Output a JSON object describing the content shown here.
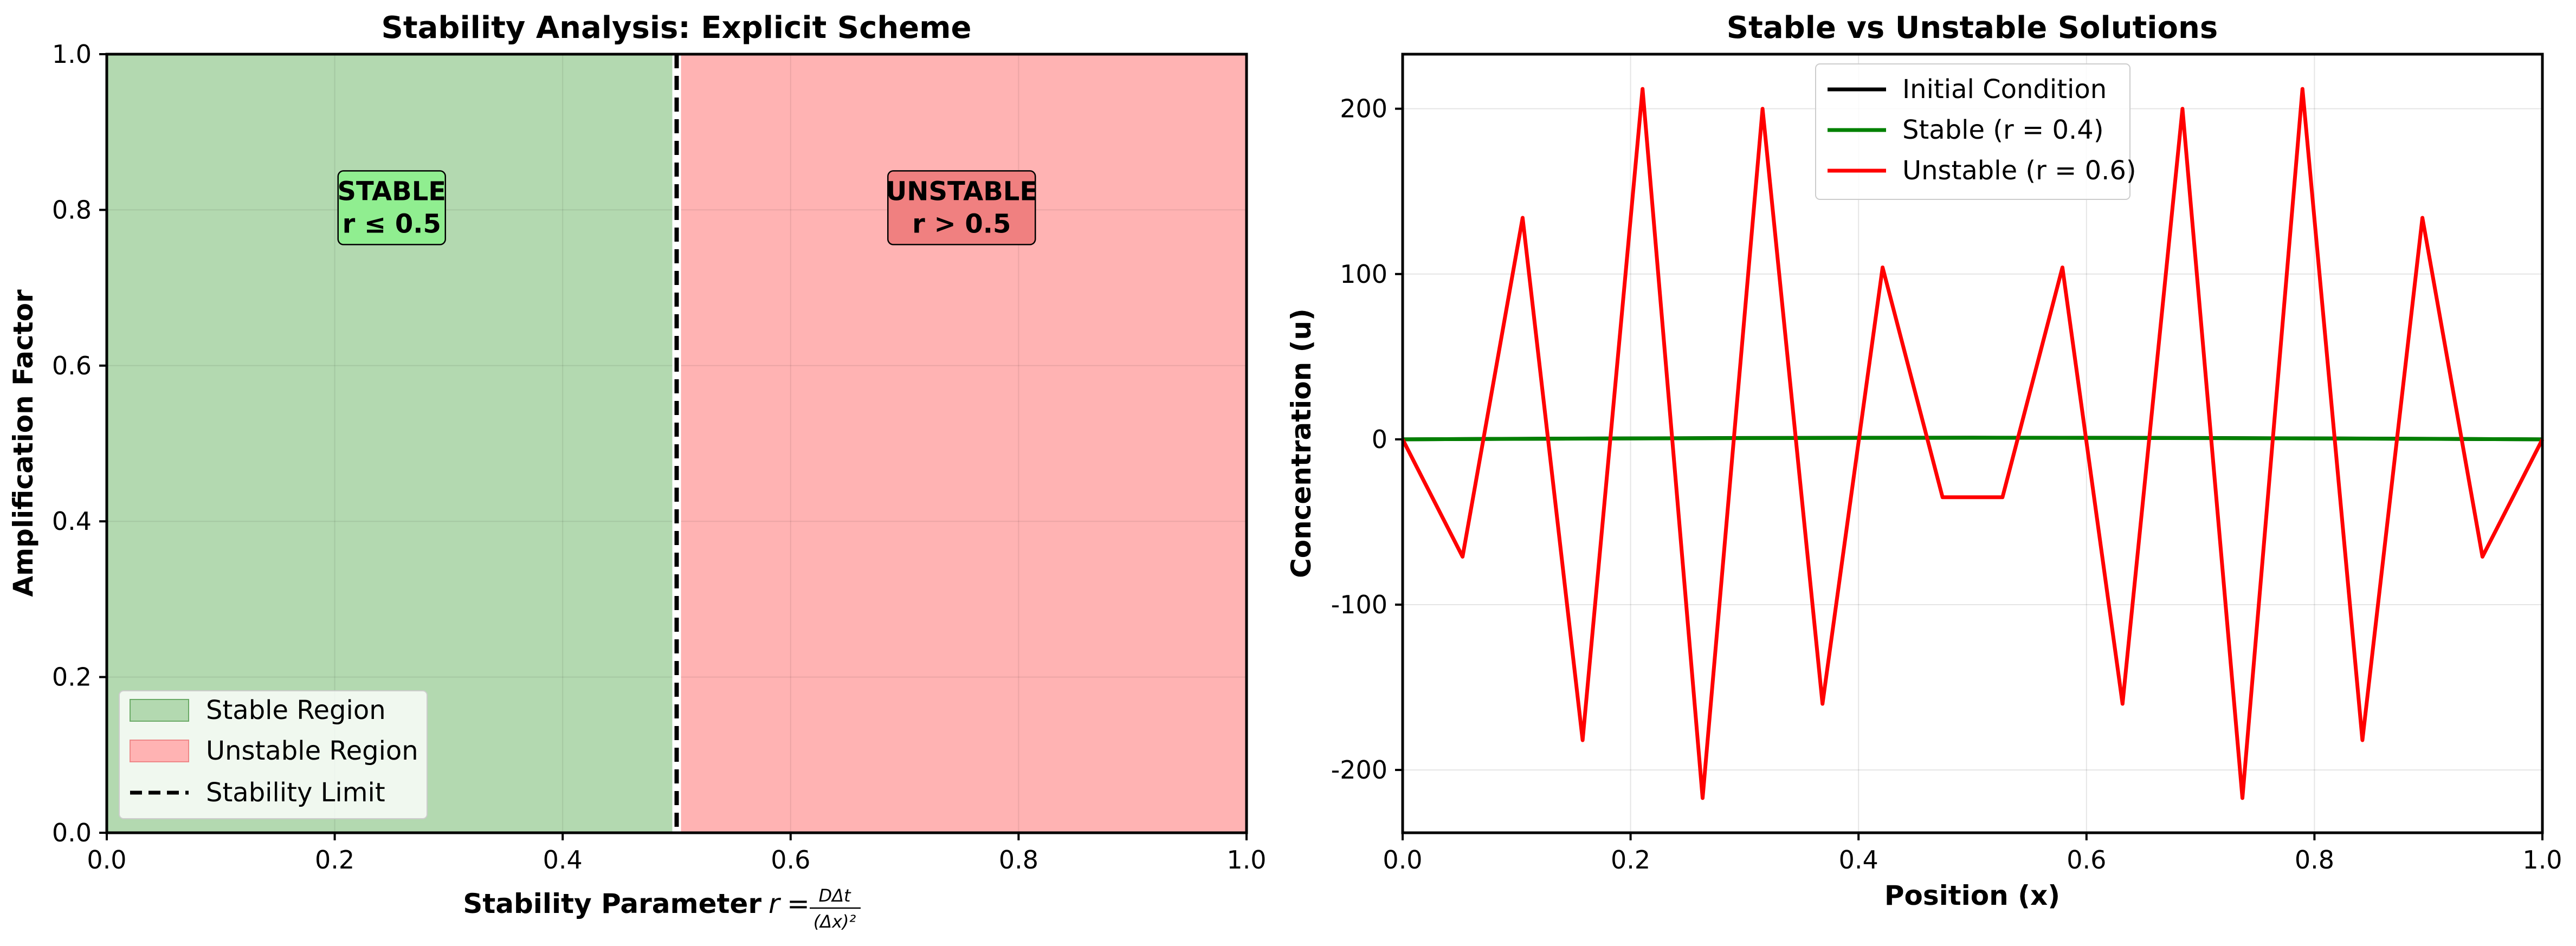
{
  "chart_data": [
    {
      "type": "area",
      "title": "Stability Analysis: Explicit Scheme",
      "xlabel": "Stability Parameter",
      "xlabel_math": "r = DΔt / (Δx)²",
      "ylabel": "Amplification Factor",
      "xlim": [
        0,
        1
      ],
      "ylim": [
        0,
        1
      ],
      "xticks": [
        0.0,
        0.2,
        0.4,
        0.6,
        0.8,
        1.0
      ],
      "yticks": [
        0.0,
        0.2,
        0.4,
        0.6,
        0.8,
        1.0
      ],
      "xtick_labels": [
        "0.0",
        "0.2",
        "0.4",
        "0.6",
        "0.8",
        "1.0"
      ],
      "ytick_labels": [
        "0.0",
        "0.2",
        "0.4",
        "0.6",
        "0.8",
        "1.0"
      ],
      "grid": true,
      "regions": [
        {
          "name": "Stable Region",
          "x": [
            0.0,
            0.5
          ],
          "color": "#b3d9b0"
        },
        {
          "name": "Unstable Region",
          "x": [
            0.5,
            1.0
          ],
          "color": "#ffb3b3"
        }
      ],
      "vline": {
        "name": "Stability Limit",
        "x": 0.5
      },
      "annotations": [
        {
          "line1": "STABLE",
          "line2": "r ≤ 0.5",
          "x": 0.25,
          "y": 0.8,
          "color": "#90ee90"
        },
        {
          "line1": "UNSTABLE",
          "line2": "r > 0.5",
          "x": 0.75,
          "y": 0.8,
          "color": "#f08080"
        }
      ],
      "legend": {
        "position": "lower-left",
        "entries": [
          "Stable Region",
          "Unstable Region",
          "Stability Limit"
        ]
      }
    },
    {
      "type": "line",
      "title": "Stable vs Unstable Solutions",
      "xlabel": "Position (x)",
      "ylabel": "Concentration (u)",
      "xlim": [
        0,
        1
      ],
      "ylim": [
        -238,
        233
      ],
      "xticks": [
        0.0,
        0.2,
        0.4,
        0.6,
        0.8,
        1.0
      ],
      "yticks": [
        -200,
        -100,
        0,
        100,
        200
      ],
      "xtick_labels": [
        "0.0",
        "0.2",
        "0.4",
        "0.6",
        "0.8",
        "1.0"
      ],
      "ytick_labels": [
        "-200",
        "-100",
        "0",
        "100",
        "200"
      ],
      "grid": true,
      "legend": {
        "position": "upper-center"
      },
      "series": [
        {
          "name": "Initial Condition",
          "color": "#000000",
          "x": [
            0.0,
            0.1,
            0.2,
            0.3,
            0.4,
            0.5,
            0.6,
            0.7,
            0.8,
            0.9,
            1.0
          ],
          "values": [
            0.0,
            0.31,
            0.59,
            0.81,
            0.95,
            1.0,
            0.95,
            0.81,
            0.59,
            0.31,
            0.0
          ]
        },
        {
          "name": "Stable (r = 0.4)",
          "color": "#008000",
          "x": [
            0.0,
            0.1,
            0.2,
            0.3,
            0.4,
            0.5,
            0.6,
            0.7,
            0.8,
            0.9,
            1.0
          ],
          "values": [
            0.0,
            0.3,
            0.55,
            0.76,
            0.89,
            0.94,
            0.89,
            0.76,
            0.55,
            0.3,
            0.0
          ]
        },
        {
          "name": "Unstable (r = 0.6)",
          "color": "#ff0000",
          "x": [
            0.0,
            0.0526,
            0.1053,
            0.1579,
            0.2105,
            0.2632,
            0.3158,
            0.3684,
            0.4211,
            0.4737,
            0.5263,
            0.5789,
            0.6316,
            0.6842,
            0.7368,
            0.7895,
            0.8421,
            0.8947,
            0.9474,
            1.0
          ],
          "values": [
            0,
            -71,
            134,
            -182,
            212,
            -217,
            200,
            -160,
            104,
            -35,
            -35,
            104,
            -160,
            200,
            -217,
            212,
            -182,
            134,
            -71,
            0
          ]
        }
      ]
    }
  ]
}
